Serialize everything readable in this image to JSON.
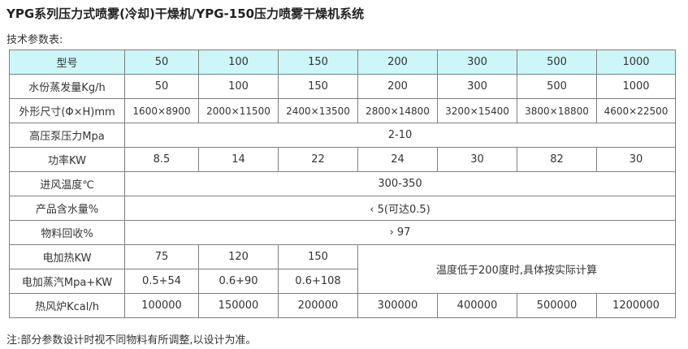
{
  "title": "YPG系列压力式喷雾(冷却)干燥机/YPG-150压力喷雾干燥机系统",
  "subtitle": "技术参数表:",
  "table": {
    "header": {
      "label": "型号",
      "models": [
        "50",
        "100",
        "150",
        "200",
        "300",
        "500",
        "1000"
      ]
    },
    "evaporation": {
      "label": "水份蒸发量Kg/h",
      "values": [
        "50",
        "100",
        "150",
        "200",
        "300",
        "500",
        "1000"
      ]
    },
    "dimensions": {
      "label": "外形尺寸(Φ×H)mm",
      "values": [
        "1600×8900",
        "2000×11500",
        "2400×13500",
        "2800×14800",
        "3200×15400",
        "3800×18800",
        "4600×22500"
      ]
    },
    "pump_pressure": {
      "label": "高压泵压力Mpa",
      "value": "2-10"
    },
    "power": {
      "label": "功率KW",
      "values": [
        "8.5",
        "14",
        "22",
        "24",
        "30",
        "82",
        "30"
      ]
    },
    "inlet_temp": {
      "label": "进风温度℃",
      "value": "300-350"
    },
    "moisture": {
      "label": "产品含水量%",
      "value": "‹ 5(可达0.5)"
    },
    "recovery": {
      "label": "物料回收%",
      "value": "› 97"
    },
    "electric_heat": {
      "label": "电加热KW",
      "values": [
        "75",
        "120",
        "150"
      ]
    },
    "electric_steam": {
      "label": "电加蒸汽Mpa+KW",
      "values": [
        "0.5+54",
        "0.6+90",
        "0.6+108"
      ]
    },
    "heating_note": "温度低于200度时,具体按实际计算",
    "hot_air_furnace": {
      "label": "热风炉Kcal/h",
      "values": [
        "100000",
        "150000",
        "200000",
        "300000",
        "400000",
        "500000",
        "1200000"
      ]
    }
  },
  "note": "注:部分参数设计时视不同物料有所调整,以设计为准。"
}
